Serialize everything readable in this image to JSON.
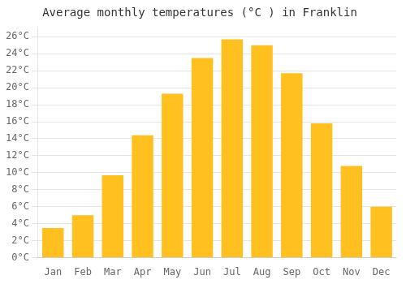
{
  "chart_data": {
    "type": "bar",
    "title": "Average monthly temperatures (°C ) in Franklin",
    "categories": [
      "Jan",
      "Feb",
      "Mar",
      "Apr",
      "May",
      "Jun",
      "Jul",
      "Aug",
      "Sep",
      "Oct",
      "Nov",
      "Dec"
    ],
    "values": [
      3.5,
      5.0,
      9.7,
      14.4,
      19.3,
      23.5,
      25.7,
      25.0,
      21.7,
      15.8,
      10.8,
      6.0
    ],
    "color": "#FFC020",
    "ylim": [
      0,
      27
    ],
    "yticks": [
      {
        "value": 0,
        "label": "0°C"
      },
      {
        "value": 2,
        "label": "2°C"
      },
      {
        "value": 4,
        "label": "4°C"
      },
      {
        "value": 6,
        "label": "6°C"
      },
      {
        "value": 8,
        "label": "8°C"
      },
      {
        "value": 10,
        "label": "10°C"
      },
      {
        "value": 12,
        "label": "12°C"
      },
      {
        "value": 14,
        "label": "14°C"
      },
      {
        "value": 16,
        "label": "16°C"
      },
      {
        "value": 18,
        "label": "18°C"
      },
      {
        "value": 20,
        "label": "20°C"
      },
      {
        "value": 22,
        "label": "22°C"
      },
      {
        "value": 24,
        "label": "24°C"
      },
      {
        "value": 26,
        "label": "26°C"
      }
    ],
    "grid": true
  }
}
